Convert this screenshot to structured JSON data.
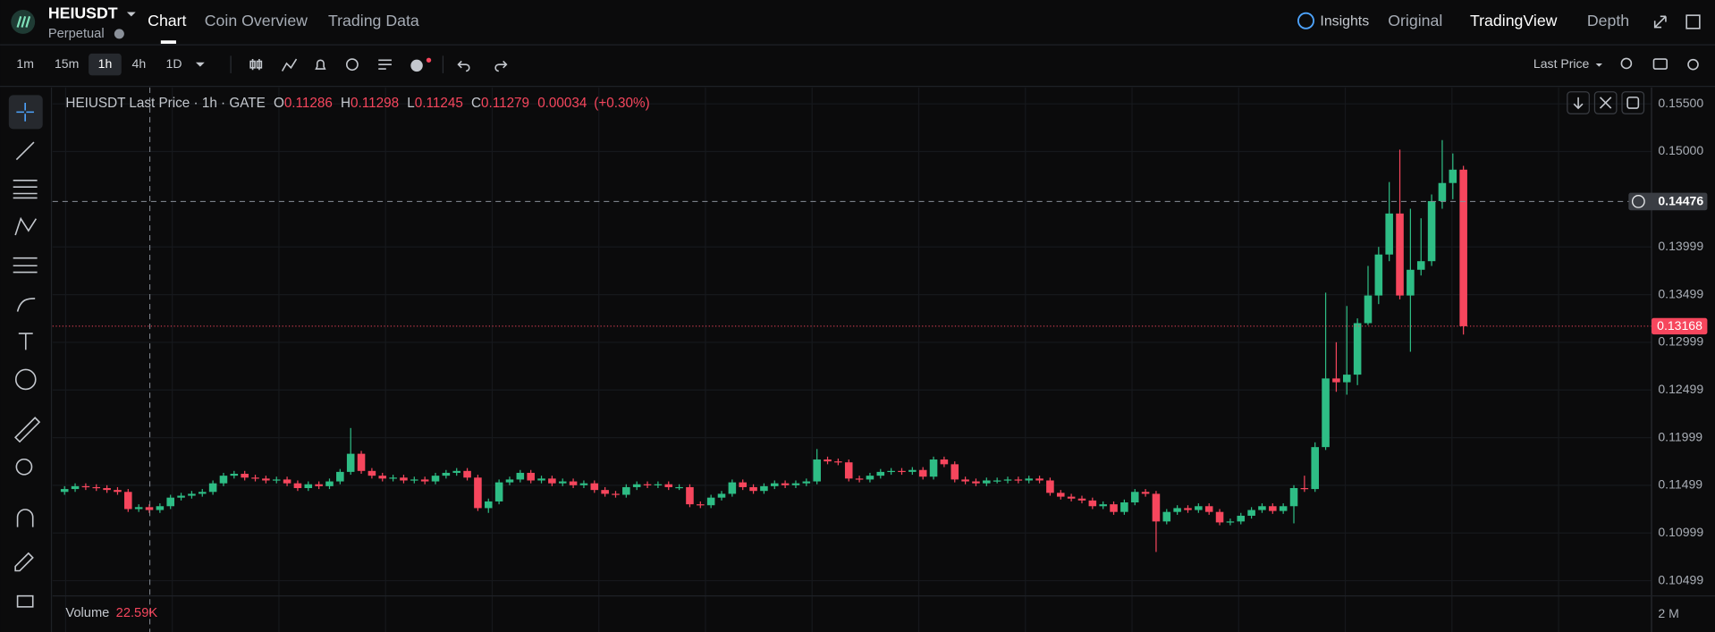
{
  "header": {
    "symbol": "HEIUSDT",
    "contract": "Perpetual",
    "tabs": [
      "Chart",
      "Coin Overview",
      "Trading Data"
    ],
    "right_menu": [
      "Insights",
      "Original",
      "TradingView",
      "Depth"
    ]
  },
  "toolbar": {
    "intervals": [
      "1m",
      "15m",
      "1h",
      "4h",
      "1D"
    ],
    "price_type": "Last Price"
  },
  "legend": {
    "title": "HEIUSDT Last Price · 1h · GATE",
    "fields": [
      {
        "label": "O",
        "value": 0.11286
      },
      {
        "label": "H",
        "value": 0.11298
      },
      {
        "label": "L",
        "value": 0.11245
      },
      {
        "label": "C",
        "value": 0.11279
      }
    ],
    "change": "0.00034",
    "change_pct": "(+0.30%)"
  },
  "volume": {
    "label": "Volume",
    "value": "22.59K",
    "tick": "2 M"
  },
  "chart_data": {
    "type": "candlestick",
    "open": [
      0.1143,
      0.1146,
      0.1149,
      0.1148,
      0.1147,
      0.1145,
      0.1143,
      0.1125,
      0.1127,
      0.1124,
      0.1128,
      0.1137,
      0.1139,
      0.1141,
      0.1143,
      0.1152,
      0.116,
      0.1162,
      0.1158,
      0.1157,
      0.1155,
      0.1156,
      0.1152,
      0.1147,
      0.1151,
      0.1149,
      0.1154,
      0.1164,
      0.1183,
      0.1165,
      0.116,
      0.1157,
      0.1158,
      0.1155,
      0.1156,
      0.1154,
      0.116,
      0.1163,
      0.1165,
      0.1158,
      0.1126,
      0.1133,
      0.1153,
      0.1156,
      0.1163,
      0.1155,
      0.1157,
      0.1152,
      0.1154,
      0.115,
      0.1152,
      0.1145,
      0.1141,
      0.114,
      0.1148,
      0.1151,
      0.115,
      0.1151,
      0.1148,
      0.1148,
      0.113,
      0.1129,
      0.1137,
      0.1141,
      0.1153,
      0.1148,
      0.1144,
      0.1149,
      0.1152,
      0.115,
      0.1152,
      0.1154,
      0.1177,
      0.1175,
      0.1174,
      0.1157,
      0.1156,
      0.116,
      0.1164,
      0.1165,
      0.1164,
      0.1166,
      0.1159,
      0.1177,
      0.1172,
      0.1156,
      0.1154,
      0.1152,
      0.1155,
      0.1155,
      0.1156,
      0.1155,
      0.1157,
      0.1155,
      0.1142,
      0.1138,
      0.1136,
      0.1134,
      0.1128,
      0.113,
      0.1122,
      0.1132,
      0.1143,
      0.1141,
      0.1112,
      0.1122,
      0.1126,
      0.1124,
      0.1128,
      0.1122,
      0.1111,
      0.1112,
      0.1118,
      0.1124,
      0.1128,
      0.1123,
      0.1128,
      0.1147,
      0.1146,
      0.119,
      0.1262,
      0.1258,
      0.1266,
      0.132,
      0.1349,
      0.1392,
      0.1435,
      0.1349,
      0.1376,
      0.1385,
      0.1448,
      0.1467,
      0.1481
    ],
    "high": [
      0.1149,
      0.1152,
      0.1152,
      0.1151,
      0.115,
      0.1148,
      0.1146,
      0.113,
      0.113,
      0.1131,
      0.114,
      0.1142,
      0.1144,
      0.1146,
      0.1155,
      0.1163,
      0.1165,
      0.1165,
      0.1161,
      0.116,
      0.1159,
      0.1159,
      0.1155,
      0.1154,
      0.1154,
      0.1157,
      0.1167,
      0.121,
      0.1186,
      0.1168,
      0.1163,
      0.1161,
      0.1161,
      0.1159,
      0.1159,
      0.1163,
      0.1166,
      0.1168,
      0.1168,
      0.1161,
      0.1136,
      0.1156,
      0.1159,
      0.1166,
      0.1166,
      0.116,
      0.116,
      0.1157,
      0.1157,
      0.1155,
      0.1155,
      0.1148,
      0.1144,
      0.1151,
      0.1154,
      0.1154,
      0.1154,
      0.1154,
      0.1151,
      0.1151,
      0.1133,
      0.114,
      0.1144,
      0.1156,
      0.1156,
      0.1151,
      0.1152,
      0.1155,
      0.1155,
      0.1155,
      0.1157,
      0.1188,
      0.118,
      0.1178,
      0.1177,
      0.116,
      0.1163,
      0.1167,
      0.1168,
      0.1168,
      0.1169,
      0.1169,
      0.118,
      0.118,
      0.1175,
      0.1159,
      0.1157,
      0.1158,
      0.1158,
      0.1159,
      0.1159,
      0.116,
      0.116,
      0.1158,
      0.1145,
      0.1141,
      0.1139,
      0.1137,
      0.1133,
      0.1133,
      0.1135,
      0.1146,
      0.1146,
      0.1144,
      0.1125,
      0.1129,
      0.1129,
      0.1131,
      0.1131,
      0.1125,
      0.1115,
      0.1121,
      0.1127,
      0.1131,
      0.1131,
      0.1131,
      0.115,
      0.116,
      0.1195,
      0.1352,
      0.13,
      0.1338,
      0.1325,
      0.138,
      0.14,
      0.1468,
      0.1502,
      0.144,
      0.143,
      0.1455,
      0.1512,
      0.1498,
      0.1485
    ],
    "low": [
      0.114,
      0.1143,
      0.1145,
      0.1144,
      0.1142,
      0.114,
      0.1122,
      0.1122,
      0.1121,
      0.1121,
      0.1125,
      0.1134,
      0.1136,
      0.1138,
      0.114,
      0.1149,
      0.1157,
      0.1155,
      0.1154,
      0.1152,
      0.1152,
      0.1149,
      0.1144,
      0.1144,
      0.1146,
      0.1146,
      0.1151,
      0.1161,
      0.1162,
      0.1157,
      0.1154,
      0.1154,
      0.1152,
      0.1152,
      0.1151,
      0.1151,
      0.1157,
      0.116,
      0.1155,
      0.1123,
      0.1121,
      0.113,
      0.115,
      0.1153,
      0.1152,
      0.1152,
      0.1149,
      0.1149,
      0.1147,
      0.1147,
      0.1142,
      0.1138,
      0.1137,
      0.1137,
      0.1145,
      0.1147,
      0.1147,
      0.1145,
      0.1145,
      0.1127,
      0.1126,
      0.1126,
      0.1134,
      0.1138,
      0.1145,
      0.1141,
      0.1141,
      0.1146,
      0.1147,
      0.1147,
      0.1149,
      0.1151,
      0.1172,
      0.1171,
      0.1154,
      0.1153,
      0.1153,
      0.1157,
      0.1161,
      0.1161,
      0.1161,
      0.1156,
      0.1156,
      0.1169,
      0.1153,
      0.1151,
      0.1149,
      0.1149,
      0.1152,
      0.1152,
      0.1152,
      0.1152,
      0.1152,
      0.1139,
      0.1135,
      0.1133,
      0.1131,
      0.1125,
      0.1125,
      0.1119,
      0.1119,
      0.1129,
      0.1138,
      0.108,
      0.1109,
      0.1119,
      0.1121,
      0.1121,
      0.1119,
      0.1108,
      0.1108,
      0.1109,
      0.1115,
      0.1121,
      0.112,
      0.112,
      0.111,
      0.1143,
      0.1143,
      0.1187,
      0.1248,
      0.1245,
      0.1255,
      0.1318,
      0.134,
      0.1385,
      0.1345,
      0.129,
      0.137,
      0.138,
      0.144,
      0.145,
      0.1308
    ],
    "close": [
      0.1146,
      0.1149,
      0.1148,
      0.1147,
      0.1145,
      0.1143,
      0.1125,
      0.1127,
      0.1124,
      0.1128,
      0.1137,
      0.1139,
      0.1141,
      0.1143,
      0.1152,
      0.116,
      0.1162,
      0.1158,
      0.1157,
      0.1155,
      0.1156,
      0.1152,
      0.1147,
      0.1151,
      0.1149,
      0.1154,
      0.1164,
      0.1183,
      0.1165,
      0.116,
      0.1157,
      0.1158,
      0.1155,
      0.1156,
      0.1154,
      0.116,
      0.1163,
      0.1165,
      0.1158,
      0.1126,
      0.1133,
      0.1153,
      0.1156,
      0.1163,
      0.1155,
      0.1157,
      0.1152,
      0.1154,
      0.115,
      0.1152,
      0.1145,
      0.1141,
      0.114,
      0.1148,
      0.1151,
      0.115,
      0.1151,
      0.1148,
      0.1148,
      0.113,
      0.1129,
      0.1137,
      0.1141,
      0.1153,
      0.1148,
      0.1144,
      0.1149,
      0.1152,
      0.115,
      0.1152,
      0.1154,
      0.1177,
      0.1175,
      0.1174,
      0.1157,
      0.1156,
      0.116,
      0.1164,
      0.1165,
      0.1164,
      0.1166,
      0.1159,
      0.1177,
      0.1172,
      0.1156,
      0.1154,
      0.1152,
      0.1155,
      0.1155,
      0.1156,
      0.1155,
      0.1157,
      0.1155,
      0.1142,
      0.1138,
      0.1136,
      0.1134,
      0.1128,
      0.113,
      0.1122,
      0.1132,
      0.1143,
      0.1141,
      0.1112,
      0.1122,
      0.1126,
      0.1124,
      0.1128,
      0.1122,
      0.1111,
      0.1112,
      0.1118,
      0.1124,
      0.1128,
      0.1123,
      0.1128,
      0.1147,
      0.1146,
      0.119,
      0.1262,
      0.1258,
      0.1266,
      0.132,
      0.1349,
      0.1392,
      0.1435,
      0.1349,
      0.1376,
      0.1385,
      0.1448,
      0.1467,
      0.1481,
      0.13168
    ],
    "ylim": [
      0.10339,
      0.15672
    ],
    "yticks": [
      {
        "value": 0.155,
        "label": "0.15500"
      },
      {
        "value": 0.15,
        "label": "0.15000"
      },
      0.13999,
      0.13499,
      0.12999,
      0.12499,
      0.11999,
      0.11499,
      0.10999,
      0.10499
    ],
    "crosshair_price": 0.14476,
    "last_price": 0.13168,
    "up_color": "#2ebd85",
    "down_color": "#f6465d",
    "grid": true
  }
}
